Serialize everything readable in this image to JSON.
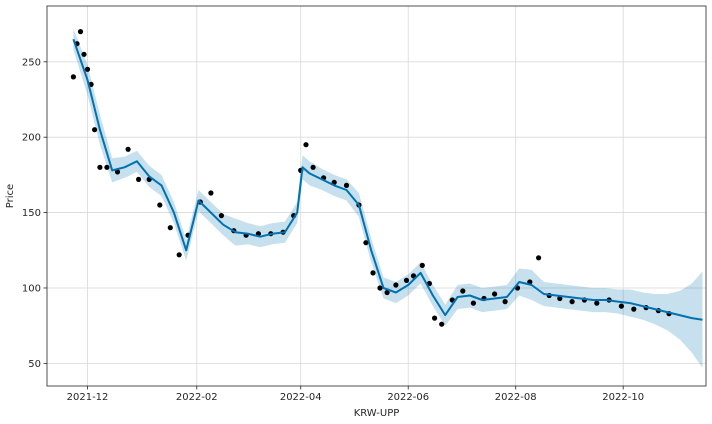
{
  "chart_data": {
    "type": "scatter",
    "title": "",
    "xlabel": "KRW-UPP",
    "ylabel": "Price",
    "grid": true,
    "legend": "none",
    "x_range": [
      "2021-11-08",
      "2022-11-17"
    ],
    "ylim": [
      35,
      287
    ],
    "x_ticks": [
      {
        "date": "2021-12-01",
        "label": "2021-12"
      },
      {
        "date": "2022-02-01",
        "label": "2022-02"
      },
      {
        "date": "2022-04-01",
        "label": "2022-04"
      },
      {
        "date": "2022-06-01",
        "label": "2022-06"
      },
      {
        "date": "2022-08-01",
        "label": "2022-08"
      },
      {
        "date": "2022-10-01",
        "label": "2022-10"
      }
    ],
    "y_ticks": [
      50,
      100,
      150,
      200,
      250
    ],
    "colors": {
      "observed": "#000000",
      "forecast": "#0072B2",
      "uncertainty": "#0072B2",
      "grid": "#d9d9d9"
    },
    "series": [
      {
        "role": "observed",
        "style": "points",
        "x": [
          "2021-11-23",
          "2021-11-25",
          "2021-11-27",
          "2021-11-29",
          "2021-12-01",
          "2021-12-03",
          "2021-12-05",
          "2021-12-08",
          "2021-12-12",
          "2021-12-18",
          "2021-12-24",
          "2021-12-30",
          "2022-01-05",
          "2022-01-11",
          "2022-01-17",
          "2022-01-22",
          "2022-01-27",
          "2022-02-03",
          "2022-02-09",
          "2022-02-15",
          "2022-02-22",
          "2022-03-01",
          "2022-03-08",
          "2022-03-15",
          "2022-03-22",
          "2022-03-28",
          "2022-04-01",
          "2022-04-04",
          "2022-04-08",
          "2022-04-14",
          "2022-04-20",
          "2022-04-27",
          "2022-05-04",
          "2022-05-08",
          "2022-05-12",
          "2022-05-16",
          "2022-05-20",
          "2022-05-25",
          "2022-05-31",
          "2022-06-04",
          "2022-06-09",
          "2022-06-13",
          "2022-06-16",
          "2022-06-20",
          "2022-06-26",
          "2022-07-02",
          "2022-07-08",
          "2022-07-14",
          "2022-07-20",
          "2022-07-26",
          "2022-08-02",
          "2022-08-09",
          "2022-08-14",
          "2022-08-20",
          "2022-08-26",
          "2022-09-02",
          "2022-09-09",
          "2022-09-16",
          "2022-09-23",
          "2022-09-30",
          "2022-10-07",
          "2022-10-14",
          "2022-10-21",
          "2022-10-27"
        ],
        "values": [
          240,
          262,
          270,
          255,
          245,
          235,
          205,
          180,
          180,
          177,
          192,
          172,
          172,
          155,
          140,
          122,
          135,
          157,
          163,
          148,
          138,
          135,
          136,
          136,
          137,
          148,
          178,
          195,
          180,
          173,
          170,
          168,
          155,
          130,
          110,
          100,
          97,
          102,
          105,
          108,
          115,
          103,
          80,
          76,
          92,
          98,
          90,
          93,
          96,
          91,
          100,
          104,
          120,
          95,
          93,
          91,
          92,
          90,
          92,
          88,
          86,
          87,
          85,
          83
        ]
      },
      {
        "role": "forecast",
        "style": "line",
        "x": [
          "2021-11-23",
          "2021-12-01",
          "2021-12-08",
          "2021-12-15",
          "2021-12-22",
          "2021-12-29",
          "2022-01-05",
          "2022-01-12",
          "2022-01-19",
          "2022-01-26",
          "2022-02-02",
          "2022-02-09",
          "2022-02-16",
          "2022-02-23",
          "2022-03-02",
          "2022-03-09",
          "2022-03-16",
          "2022-03-23",
          "2022-03-30",
          "2022-04-02",
          "2022-04-06",
          "2022-04-13",
          "2022-04-20",
          "2022-04-27",
          "2022-05-04",
          "2022-05-11",
          "2022-05-18",
          "2022-05-25",
          "2022-06-01",
          "2022-06-08",
          "2022-06-15",
          "2022-06-22",
          "2022-06-29",
          "2022-07-06",
          "2022-07-13",
          "2022-07-20",
          "2022-07-27",
          "2022-08-03",
          "2022-08-10",
          "2022-08-17",
          "2022-08-24",
          "2022-08-31",
          "2022-09-07",
          "2022-09-14",
          "2022-09-21",
          "2022-09-28",
          "2022-10-05",
          "2022-10-12",
          "2022-10-19",
          "2022-10-26",
          "2022-11-02",
          "2022-11-09",
          "2022-11-15"
        ],
        "values": [
          265,
          238,
          205,
          178,
          180,
          184,
          174,
          168,
          150,
          125,
          158,
          150,
          142,
          137,
          136,
          134,
          136,
          137,
          150,
          180,
          176,
          172,
          168,
          165,
          155,
          125,
          100,
          97,
          102,
          110,
          95,
          82,
          94,
          95,
          92,
          93,
          94,
          104,
          102,
          96,
          95,
          94,
          93,
          92,
          92,
          91,
          90,
          88,
          86,
          84,
          82,
          80,
          79
        ]
      },
      {
        "role": "uncertainty",
        "style": "band",
        "x": [
          "2021-11-23",
          "2021-12-01",
          "2021-12-08",
          "2021-12-15",
          "2021-12-22",
          "2021-12-29",
          "2022-01-05",
          "2022-01-12",
          "2022-01-19",
          "2022-01-26",
          "2022-02-02",
          "2022-02-09",
          "2022-02-16",
          "2022-02-23",
          "2022-03-02",
          "2022-03-09",
          "2022-03-16",
          "2022-03-23",
          "2022-03-30",
          "2022-04-02",
          "2022-04-06",
          "2022-04-13",
          "2022-04-20",
          "2022-04-27",
          "2022-05-04",
          "2022-05-11",
          "2022-05-18",
          "2022-05-25",
          "2022-06-01",
          "2022-06-08",
          "2022-06-15",
          "2022-06-22",
          "2022-06-29",
          "2022-07-06",
          "2022-07-13",
          "2022-07-20",
          "2022-07-27",
          "2022-08-03",
          "2022-08-10",
          "2022-08-17",
          "2022-08-24",
          "2022-08-31",
          "2022-09-07",
          "2022-09-14",
          "2022-09-21",
          "2022-09-28",
          "2022-10-05",
          "2022-10-12",
          "2022-10-19",
          "2022-10-26",
          "2022-11-02",
          "2022-11-09",
          "2022-11-15"
        ],
        "lower": [
          258,
          228,
          195,
          170,
          173,
          177,
          167,
          161,
          143,
          118,
          151,
          143,
          135,
          128,
          129,
          127,
          129,
          130,
          143,
          172,
          168,
          165,
          161,
          158,
          147,
          117,
          93,
          90,
          95,
          103,
          88,
          75,
          86,
          87,
          84,
          85,
          86,
          95,
          92,
          88,
          87,
          86,
          85,
          84,
          84,
          83,
          81,
          79,
          76,
          72,
          66,
          57,
          47
        ],
        "upper": [
          272,
          248,
          215,
          186,
          187,
          191,
          181,
          175,
          157,
          132,
          165,
          157,
          149,
          146,
          143,
          141,
          143,
          144,
          157,
          188,
          184,
          179,
          175,
          172,
          163,
          133,
          107,
          104,
          109,
          117,
          102,
          89,
          102,
          103,
          100,
          101,
          102,
          113,
          112,
          104,
          103,
          102,
          101,
          100,
          100,
          99,
          99,
          97,
          96,
          96,
          98,
          103,
          111
        ]
      }
    ]
  }
}
